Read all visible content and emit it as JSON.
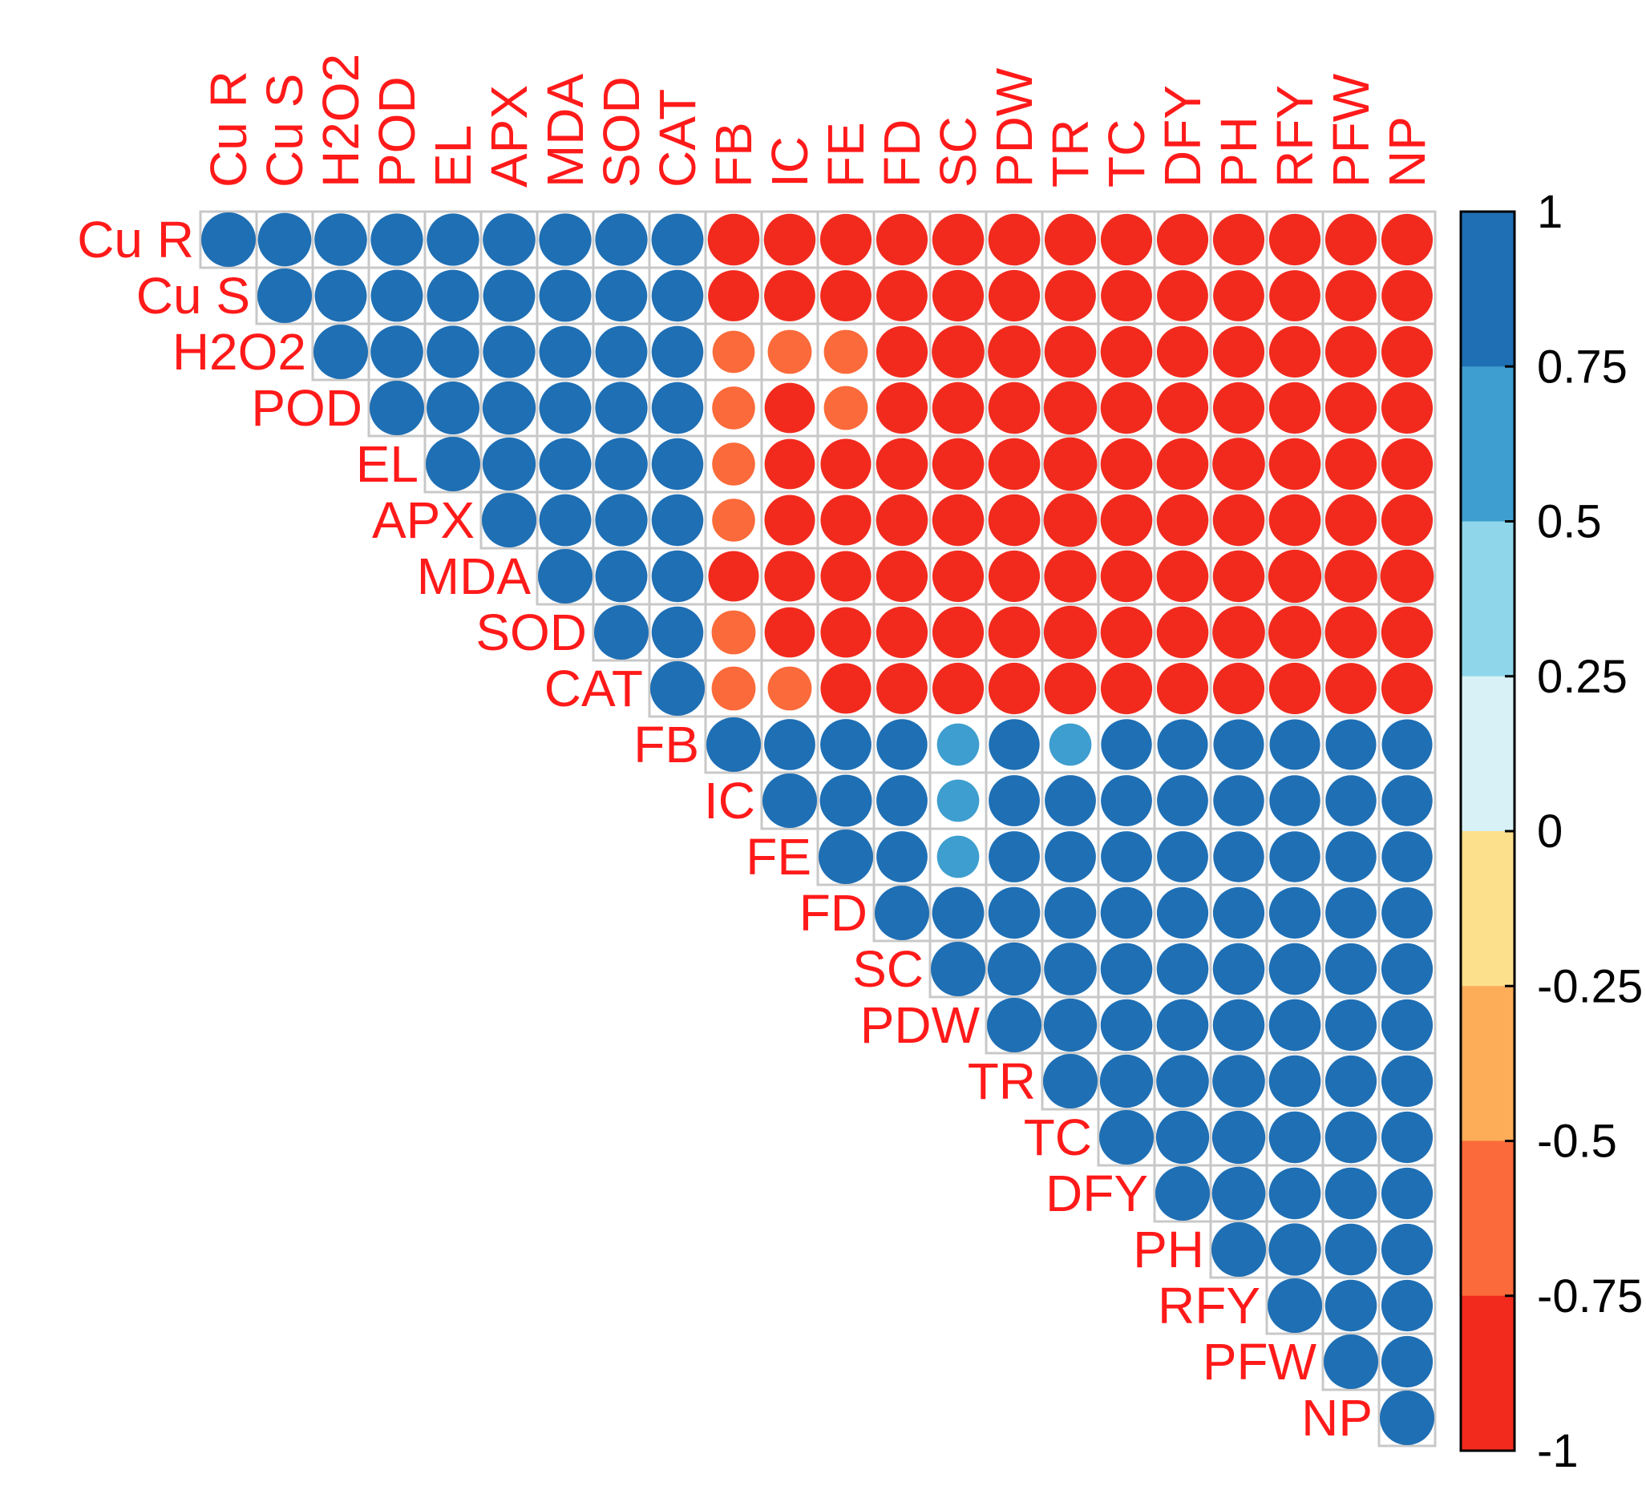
{
  "chart_data": {
    "type": "heatmap",
    "variables": [
      "Cu R",
      "Cu S",
      "H2O2",
      "POD",
      "EL",
      "APX",
      "MDA",
      "SOD",
      "CAT",
      "FB",
      "IC",
      "FE",
      "FD",
      "SC",
      "PDW",
      "TR",
      "TC",
      "DFY",
      "PH",
      "RFY",
      "PFW",
      "NP"
    ],
    "matrix": [
      [
        1,
        0.96,
        0.93,
        0.92,
        0.92,
        0.93,
        0.92,
        0.92,
        0.91,
        -0.9,
        -0.9,
        -0.89,
        -0.89,
        -0.9,
        -0.9,
        -0.89,
        -0.89,
        -0.89,
        -0.89,
        -0.89,
        -0.89,
        -0.89
      ],
      [
        null,
        1,
        0.91,
        0.91,
        0.91,
        0.91,
        0.91,
        0.9,
        0.9,
        -0.88,
        -0.88,
        -0.88,
        -0.88,
        -0.89,
        -0.89,
        -0.88,
        -0.88,
        -0.88,
        -0.88,
        -0.88,
        -0.88,
        -0.88
      ],
      [
        null,
        null,
        1,
        0.93,
        0.92,
        0.92,
        0.91,
        0.91,
        0.9,
        -0.6,
        -0.65,
        -0.65,
        -0.89,
        -0.93,
        -0.93,
        -0.9,
        -0.9,
        -0.89,
        -0.89,
        -0.89,
        -0.89,
        -0.89
      ],
      [
        null,
        null,
        null,
        1,
        0.94,
        0.95,
        0.91,
        0.92,
        0.9,
        -0.62,
        -0.85,
        -0.65,
        -0.89,
        -0.9,
        -0.9,
        -0.95,
        -0.9,
        -0.89,
        -0.89,
        -0.89,
        -0.89,
        -0.89
      ],
      [
        null,
        null,
        null,
        null,
        1,
        0.95,
        0.91,
        0.93,
        0.9,
        -0.62,
        -0.85,
        -0.86,
        -0.9,
        -0.9,
        -0.9,
        -0.96,
        -0.9,
        -0.9,
        -0.93,
        -0.9,
        -0.89,
        -0.89
      ],
      [
        null,
        null,
        null,
        null,
        null,
        1,
        0.91,
        0.92,
        0.9,
        -0.62,
        -0.86,
        -0.86,
        -0.9,
        -0.9,
        -0.9,
        -0.96,
        -0.9,
        -0.9,
        -0.9,
        -0.9,
        -0.89,
        -0.89
      ],
      [
        null,
        null,
        null,
        null,
        null,
        null,
        1,
        0.91,
        0.9,
        -0.86,
        -0.86,
        -0.86,
        -0.89,
        -0.89,
        -0.89,
        -0.92,
        -0.9,
        -0.9,
        -0.9,
        -0.95,
        -0.93,
        -0.96
      ],
      [
        null,
        null,
        null,
        null,
        null,
        null,
        null,
        1,
        0.9,
        -0.65,
        -0.85,
        -0.86,
        -0.89,
        -0.89,
        -0.9,
        -0.95,
        -0.9,
        -0.9,
        -0.93,
        -0.94,
        -0.91,
        -0.9
      ],
      [
        null,
        null,
        null,
        null,
        null,
        null,
        null,
        null,
        1,
        -0.65,
        -0.65,
        -0.86,
        -0.88,
        -0.89,
        -0.89,
        -0.9,
        -0.89,
        -0.89,
        -0.89,
        -0.89,
        -0.88,
        -0.89
      ],
      [
        null,
        null,
        null,
        null,
        null,
        null,
        null,
        null,
        null,
        1,
        0.88,
        0.88,
        0.87,
        0.6,
        0.87,
        0.6,
        0.87,
        0.86,
        0.86,
        0.86,
        0.86,
        0.86
      ],
      [
        null,
        null,
        null,
        null,
        null,
        null,
        null,
        null,
        null,
        null,
        1,
        0.91,
        0.88,
        0.6,
        0.88,
        0.88,
        0.88,
        0.88,
        0.87,
        0.87,
        0.87,
        0.87
      ],
      [
        null,
        null,
        null,
        null,
        null,
        null,
        null,
        null,
        null,
        null,
        null,
        1,
        0.88,
        0.6,
        0.88,
        0.88,
        0.88,
        0.88,
        0.87,
        0.87,
        0.87,
        0.87
      ],
      [
        null,
        null,
        null,
        null,
        null,
        null,
        null,
        null,
        null,
        null,
        null,
        null,
        1,
        0.91,
        0.9,
        0.9,
        0.9,
        0.89,
        0.89,
        0.89,
        0.88,
        0.88
      ],
      [
        null,
        null,
        null,
        null,
        null,
        null,
        null,
        null,
        null,
        null,
        null,
        null,
        null,
        1,
        0.95,
        0.93,
        0.9,
        0.9,
        0.9,
        0.9,
        0.89,
        0.89
      ],
      [
        null,
        null,
        null,
        null,
        null,
        null,
        null,
        null,
        null,
        null,
        null,
        null,
        null,
        null,
        1,
        0.95,
        0.9,
        0.9,
        0.9,
        0.9,
        0.89,
        0.89
      ],
      [
        null,
        null,
        null,
        null,
        null,
        null,
        null,
        null,
        null,
        null,
        null,
        null,
        null,
        null,
        null,
        1,
        0.95,
        0.93,
        0.93,
        0.9,
        0.89,
        0.89
      ],
      [
        null,
        null,
        null,
        null,
        null,
        null,
        null,
        null,
        null,
        null,
        null,
        null,
        null,
        null,
        null,
        null,
        1,
        0.95,
        0.95,
        0.9,
        0.9,
        0.89
      ],
      [
        null,
        null,
        null,
        null,
        null,
        null,
        null,
        null,
        null,
        null,
        null,
        null,
        null,
        null,
        null,
        null,
        null,
        1,
        0.96,
        0.9,
        0.9,
        0.89
      ],
      [
        null,
        null,
        null,
        null,
        null,
        null,
        null,
        null,
        null,
        null,
        null,
        null,
        null,
        null,
        null,
        null,
        null,
        null,
        1,
        0.92,
        0.9,
        0.89
      ],
      [
        null,
        null,
        null,
        null,
        null,
        null,
        null,
        null,
        null,
        null,
        null,
        null,
        null,
        null,
        null,
        null,
        null,
        null,
        null,
        1,
        0.9,
        0.89
      ],
      [
        null,
        null,
        null,
        null,
        null,
        null,
        null,
        null,
        null,
        null,
        null,
        null,
        null,
        null,
        null,
        null,
        null,
        null,
        null,
        null,
        1,
        0.89
      ],
      [
        null,
        null,
        null,
        null,
        null,
        null,
        null,
        null,
        null,
        null,
        null,
        null,
        null,
        null,
        null,
        null,
        null,
        null,
        null,
        null,
        null,
        1
      ]
    ],
    "colorbar": {
      "ticks": [
        "1",
        "0.75",
        "0.5",
        "0.25",
        "0",
        "-0.25",
        "-0.5",
        "-0.75",
        "-1"
      ],
      "bins": [
        {
          "from": 0.75,
          "to": 1,
          "color": "#1f6fb4"
        },
        {
          "from": 0.5,
          "to": 0.75,
          "color": "#3e9ecf"
        },
        {
          "from": 0.25,
          "to": 0.5,
          "color": "#8fd6ea"
        },
        {
          "from": 0,
          "to": 0.25,
          "color": "#d8f1f6"
        },
        {
          "from": -0.25,
          "to": 0,
          "color": "#fde08b"
        },
        {
          "from": -0.5,
          "to": -0.25,
          "color": "#fdac58"
        },
        {
          "from": -0.75,
          "to": -0.5,
          "color": "#fb6a3a"
        },
        {
          "from": -1,
          "to": -0.75,
          "color": "#f22a1e"
        }
      ]
    },
    "label_color": "#ff1a1a",
    "grid_color": "#c8c8c8",
    "shape": "circle"
  }
}
